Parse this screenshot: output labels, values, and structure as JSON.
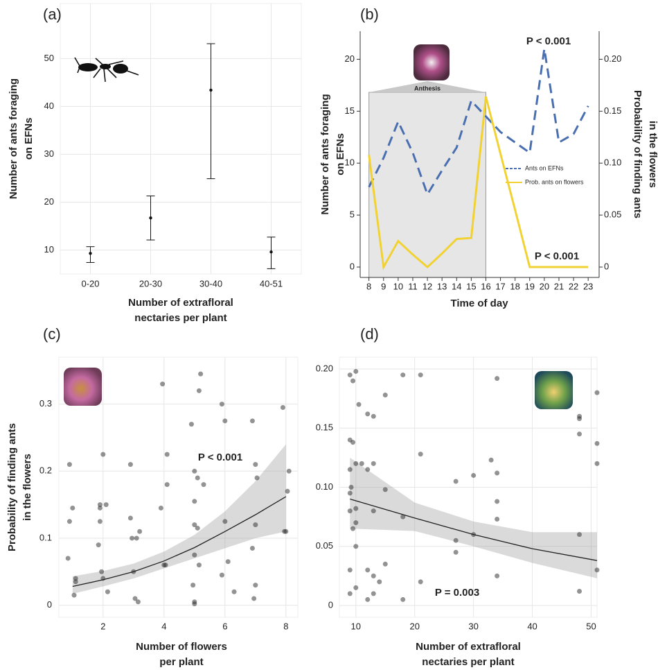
{
  "chart_data": [
    {
      "type": "errorbar",
      "label": "(a)",
      "ylabel": [
        "Number of ants foraging",
        "on EFNs"
      ],
      "xlabel": [
        "Number of extrafloral",
        "nectaries per plant"
      ],
      "categories": [
        "0-20",
        "20-30",
        "30-40",
        "40-51"
      ],
      "values": [
        9.3,
        16.7,
        43.4,
        9.6
      ],
      "lower": [
        7.4,
        12.1,
        24.9,
        6.1
      ],
      "upper": [
        10.7,
        21.3,
        53.1,
        12.7
      ],
      "ylim": [
        5,
        61.5
      ],
      "yticks": [
        10,
        20,
        30,
        40,
        50
      ],
      "grid": true,
      "color": "#111111"
    },
    {
      "type": "line",
      "label": "(b)",
      "ylabel": [
        "Number of ants foraging",
        "on EFNs"
      ],
      "y2label": [
        "Probability of finding ants",
        "in the flowers"
      ],
      "xlabel": [
        "Time of day"
      ],
      "x": [
        8,
        9,
        10,
        11,
        12,
        13,
        14,
        15,
        16,
        17,
        18,
        19,
        20,
        21,
        22,
        23
      ],
      "xlim": [
        7.4,
        23.75
      ],
      "xticks": [
        8,
        9,
        10,
        11,
        12,
        13,
        14,
        15,
        16,
        17,
        18,
        19,
        20,
        21,
        22,
        23
      ],
      "ylim": [
        -1,
        22.7
      ],
      "yticks": [
        0,
        5,
        10,
        15,
        20
      ],
      "y2lim": [
        -0.01,
        0.227
      ],
      "y2ticks": [
        0,
        0.05,
        {
          "value": 0.1,
          "label": "0.10"
        },
        0.15,
        {
          "value": 0.2,
          "label": "0.20"
        }
      ],
      "series": [
        {
          "name": "Ants on EFNs",
          "color": "#4a6fb0",
          "dashed": true,
          "values": [
            7.7,
            10.5,
            14,
            11,
            7,
            9.3,
            11.5,
            16,
            14.5,
            13,
            12,
            11,
            21,
            12,
            12.8,
            15.5
          ]
        },
        {
          "name": "Prob. ants on flowers",
          "color": "#f2d232",
          "axis": "y2",
          "values": [
            0.108,
            0,
            0.025,
            0.012,
            0,
            0.013,
            0.027,
            0.028,
            0.164,
            0.109,
            0.055,
            0,
            0,
            0,
            0,
            0
          ]
        }
      ],
      "shade": [
        8,
        16
      ],
      "shade_label": "Anthesis",
      "annotations": [
        "P < 0.001",
        "P < 0.001"
      ],
      "legend": "right"
    },
    {
      "type": "scatter",
      "label": "(c)",
      "ylabel": [
        "Probability of finding ants",
        "in the flowers"
      ],
      "xlabel": [
        "Number of flowers",
        "per plant"
      ],
      "x": [
        0.9,
        0.9,
        0.85,
        1.0,
        1.1,
        1.1,
        1.05,
        1.9,
        1.9,
        1.9,
        1.85,
        1.95,
        2.0,
        2.1,
        2.0,
        2.15,
        2.9,
        2.9,
        2.95,
        3.1,
        3.0,
        3.05,
        3.15,
        3.2,
        3.95,
        4.1,
        4.1,
        4.0,
        3.9,
        4.05,
        4.9,
        5.0,
        5.0,
        5.0,
        5.0,
        5.1,
        4.95,
        5.0,
        5.0,
        5.2,
        5.15,
        5.1,
        5.15,
        5.3,
        5.9,
        6.0,
        6.0,
        6.1,
        5.9,
        6.3,
        6.9,
        7.0,
        7.05,
        7.0,
        6.9,
        7.0,
        6.95,
        7.9,
        8.1,
        8.05,
        8.0,
        7.95
      ],
      "y": [
        0.21,
        0.125,
        0.07,
        0.145,
        0.04,
        0.035,
        0.015,
        0.15,
        0.145,
        0.125,
        0.09,
        0.05,
        0.225,
        0.15,
        0.04,
        0.02,
        0.21,
        0.13,
        0.1,
        0.1,
        0.05,
        0.01,
        0.005,
        0.11,
        0.33,
        0.225,
        0.18,
        0.06,
        0.145,
        0.06,
        0.27,
        0.2,
        0.155,
        0.12,
        0.075,
        0.115,
        0.03,
        0.005,
        0.002,
        0.345,
        0.32,
        0.19,
        0.06,
        0.18,
        0.3,
        0.275,
        0.125,
        0.065,
        0.045,
        0.02,
        0.275,
        0.21,
        0.19,
        0.12,
        0.085,
        0.03,
        0.01,
        0.295,
        0.2,
        0.17,
        0.11,
        0.11
      ],
      "fit": {
        "x": [
          1,
          2,
          3,
          4,
          5,
          6,
          7,
          8
        ],
        "y": [
          0.028,
          0.038,
          0.05,
          0.066,
          0.086,
          0.11,
          0.135,
          0.162
        ],
        "lower": [
          0.017,
          0.028,
          0.04,
          0.055,
          0.07,
          0.085,
          0.1,
          0.11
        ],
        "upper": [
          0.043,
          0.051,
          0.062,
          0.08,
          0.105,
          0.14,
          0.185,
          0.24
        ]
      },
      "xlim": [
        0.55,
        8.39
      ],
      "xticks": [
        2,
        4,
        6,
        8
      ],
      "ylim": [
        -0.018,
        0.37
      ],
      "yticks": [
        0,
        0.1,
        0.2,
        0.3
      ],
      "grid": true,
      "annotations": [
        "P < 0.001"
      ]
    },
    {
      "type": "scatter",
      "label": "(d)",
      "xlabel": [
        "Number of extrafloral",
        "nectaries per plant"
      ],
      "x": [
        9,
        9.5,
        10,
        10.5,
        9,
        9.5,
        10,
        9,
        9.2,
        9,
        10,
        9,
        10,
        9.5,
        10,
        9,
        10,
        9,
        11,
        12,
        13,
        12,
        13,
        13,
        12,
        13,
        13,
        12,
        15,
        15,
        15,
        14,
        18,
        18,
        18,
        21,
        21,
        21,
        27,
        27,
        27,
        30,
        30,
        33,
        34,
        34,
        34,
        34,
        34,
        48,
        48,
        48,
        48,
        48,
        51,
        51,
        51,
        51
      ],
      "y": [
        0.195,
        0.19,
        0.198,
        0.17,
        0.14,
        0.138,
        0.12,
        0.115,
        0.1,
        0.095,
        0.082,
        0.08,
        0.07,
        0.065,
        0.05,
        0.03,
        0.015,
        0.01,
        0.12,
        0.162,
        0.16,
        0.115,
        0.12,
        0.08,
        0.03,
        0.025,
        0.01,
        0.005,
        0.178,
        0.098,
        0.035,
        0.02,
        0.075,
        0.005,
        0.195,
        0.195,
        0.128,
        0.02,
        0.105,
        0.045,
        0.055,
        0.11,
        0.06,
        0.123,
        0.073,
        0.192,
        0.112,
        0.088,
        0.025,
        0.16,
        0.158,
        0.145,
        0.06,
        0.012,
        0.18,
        0.137,
        0.12,
        0.03
      ],
      "fit": {
        "x": [
          9,
          20,
          30,
          40,
          51
        ],
        "y": [
          0.09,
          0.074,
          0.06,
          0.048,
          0.038
        ],
        "lower": [
          0.065,
          0.063,
          0.05,
          0.036,
          0.023
        ],
        "upper": [
          0.125,
          0.087,
          0.071,
          0.062,
          0.062
        ]
      },
      "xlim": [
        7.2,
        51
      ],
      "xticks": [
        10,
        20,
        30,
        40,
        50
      ],
      "ylim": [
        -0.01,
        0.21
      ],
      "yticks": [
        0,
        0.05,
        {
          "value": 0.1,
          "label": "0.10"
        },
        0.15,
        {
          "value": 0.2,
          "label": "0.20"
        }
      ],
      "grid": true,
      "annotations": [
        "P = 0.003"
      ]
    }
  ]
}
